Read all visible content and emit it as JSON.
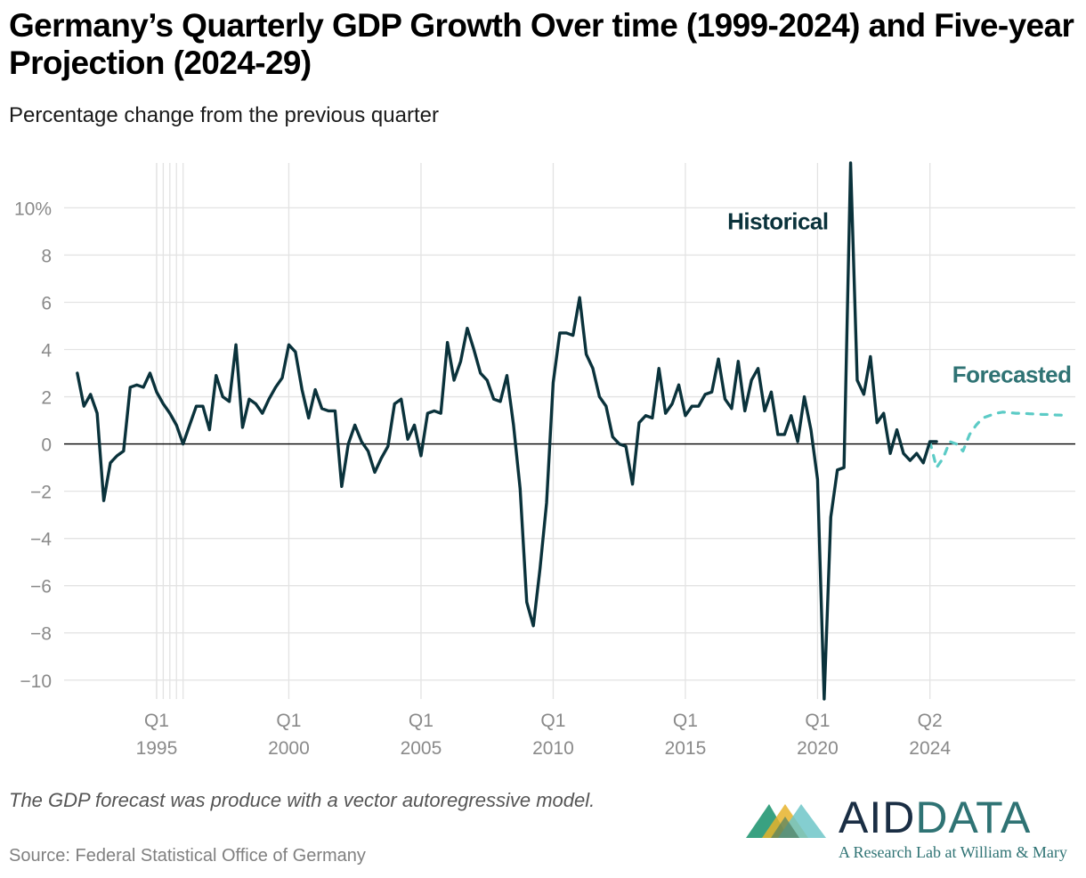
{
  "header": {
    "title": "Germany’s Quarterly GDP Growth Over time (1999-2024) and Five-year Projection (2024-29)",
    "subtitle": "Percentage change from the previous quarter"
  },
  "footer": {
    "note": "The GDP forecast was produce with a vector autoregressive model.",
    "source": "Source: Federal Statistical Office of Germany",
    "logo_word_1": "AID",
    "logo_word_2": "DATA",
    "logo_tagline": "A Research Lab at William & Mary"
  },
  "colors": {
    "historical": "#0a323b",
    "forecast": "#5ccbc6",
    "forecast_label": "#2f7374",
    "grid": "#e3e3e3",
    "axis_text": "#8a8a8a"
  },
  "chart_data": {
    "type": "line",
    "title": "Germany’s Quarterly GDP Growth Over time (1999-2024) and Five-year Projection (2024-29)",
    "subtitle": "Percentage change from the previous quarter",
    "x_unit": "year (decimal)",
    "xlim": [
      1991.5,
      2029.75
    ],
    "ylim": [
      -10.8,
      11.9
    ],
    "y_ticks": [
      10,
      8,
      6,
      4,
      2,
      0,
      -2,
      -4,
      -6,
      -8,
      -10
    ],
    "y_tick_labels": [
      "10%",
      "8",
      "6",
      "4",
      "2",
      "0",
      "−2",
      "−4",
      "−6",
      "−8",
      "−10"
    ],
    "x_ticks": [
      {
        "x": 1995,
        "q": "Q1",
        "year": "1995"
      },
      {
        "x": 2000,
        "q": "Q1",
        "year": "2000"
      },
      {
        "x": 2005,
        "q": "Q1",
        "year": "2005"
      },
      {
        "x": 2010,
        "q": "Q1",
        "year": "2010"
      },
      {
        "x": 2015,
        "q": "Q1",
        "year": "2015"
      },
      {
        "x": 2020,
        "q": "Q1",
        "year": "2020"
      },
      {
        "x": 2024.25,
        "q": "Q2",
        "year": "2024"
      }
    ],
    "minor_gridlines_x": [
      1995,
      1995.25,
      1995.5,
      1995.75,
      1996
    ],
    "grid": true,
    "zero_line": true,
    "series": [
      {
        "name": "Historical",
        "style": "solid",
        "start": 1992,
        "step": 0.25,
        "values": [
          3.0,
          1.6,
          2.1,
          1.3,
          -2.4,
          -0.8,
          -0.5,
          -0.3,
          2.4,
          2.5,
          2.4,
          3.0,
          2.2,
          1.7,
          1.3,
          0.8,
          0.0,
          0.8,
          1.6,
          1.6,
          0.6,
          2.9,
          2.0,
          1.8,
          4.2,
          0.7,
          1.9,
          1.7,
          1.3,
          1.9,
          2.4,
          2.8,
          4.2,
          3.9,
          2.3,
          1.1,
          2.3,
          1.5,
          1.4,
          1.4,
          -1.8,
          0.0,
          0.8,
          0.1,
          -0.3,
          -1.2,
          -0.6,
          -0.1,
          1.7,
          1.9,
          0.2,
          0.8,
          -0.5,
          1.3,
          1.4,
          1.3,
          4.3,
          2.7,
          3.5,
          4.9,
          4.0,
          3.0,
          2.7,
          1.9,
          1.8,
          2.9,
          0.8,
          -1.9,
          -6.7,
          -7.7,
          -5.3,
          -2.5,
          2.6,
          4.7,
          4.7,
          4.6,
          6.2,
          3.8,
          3.2,
          2.0,
          1.6,
          0.3,
          0.0,
          -0.1,
          -1.7,
          0.9,
          1.2,
          1.1,
          3.2,
          1.3,
          1.7,
          2.5,
          1.2,
          1.6,
          1.6,
          2.1,
          2.2,
          3.6,
          1.9,
          1.5,
          3.5,
          1.4,
          2.7,
          3.2,
          1.4,
          2.2,
          0.4,
          0.4,
          1.2,
          0.1,
          2.0,
          0.6,
          -1.5,
          -10.8,
          -3.1,
          -1.1,
          -1.0,
          11.9,
          2.7,
          2.1,
          3.7,
          0.9,
          1.3,
          -0.4,
          0.6,
          -0.4,
          -0.7,
          -0.4,
          -0.8,
          0.1,
          0.1
        ]
      },
      {
        "name": "Forecasted",
        "style": "dashed",
        "start": 2024.25,
        "step": 0.25,
        "values": [
          0.1,
          -1.0,
          -0.6,
          0.1,
          0.0,
          -0.3,
          0.4,
          0.8,
          1.1,
          1.2,
          1.3,
          1.35,
          1.33,
          1.3,
          1.3,
          1.28,
          1.27,
          1.25,
          1.25,
          1.23,
          1.22,
          1.2
        ]
      }
    ],
    "annotations": [
      {
        "text": "Historical",
        "x": 2018.5,
        "y": 9.1,
        "series": "Historical"
      },
      {
        "text": "Forecasted",
        "x": 2029.6,
        "y": 2.6,
        "series": "Forecasted"
      }
    ]
  }
}
